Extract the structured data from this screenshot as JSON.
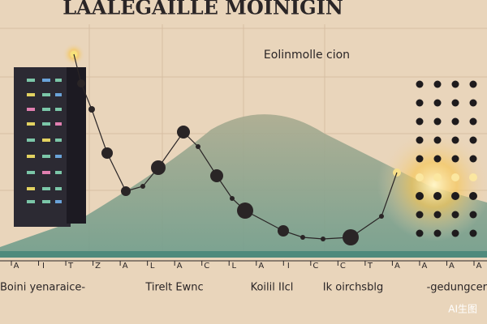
{
  "header": {
    "title": "LAALEGAILLE MOINIGIN",
    "subtitle": "Eolinmolle cion"
  },
  "axis": {
    "ticks": [
      "A",
      "I",
      "T",
      "Z",
      "A",
      "L",
      "A",
      "C",
      "L",
      "A",
      "I",
      "C",
      "C",
      "T",
      "A",
      "A",
      "A",
      "A"
    ]
  },
  "labels": [
    "Boini yenaraice-",
    "Tirelt Ewnc",
    "Koilil IIcl",
    "Ik oirchsblg",
    "-gedungcer"
  ],
  "watermark": "AI生图"
}
